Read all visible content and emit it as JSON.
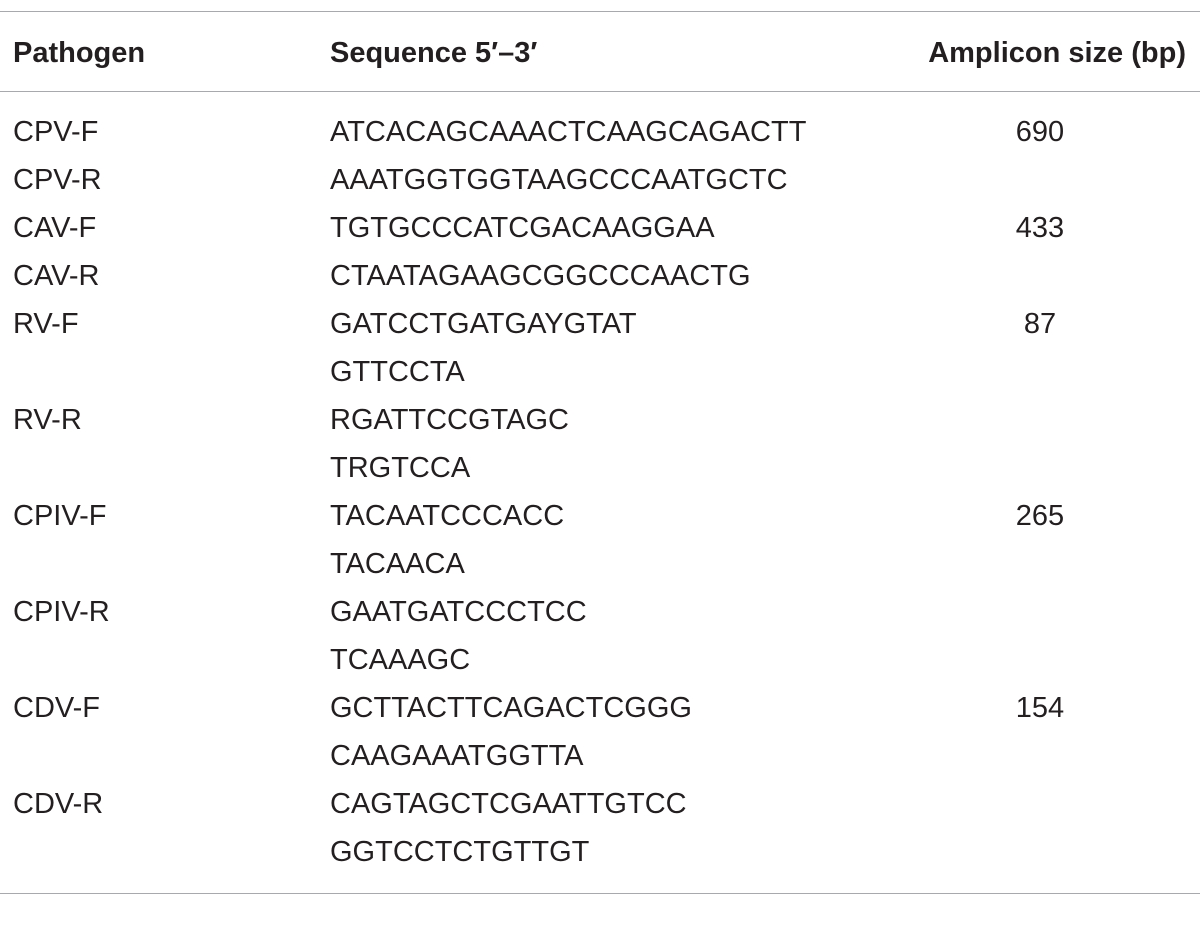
{
  "table": {
    "headers": {
      "pathogen": "Pathogen",
      "sequence": "Sequence 5′–3′",
      "amplicon": "Amplicon size (bp)"
    },
    "rows": [
      {
        "pathogen": "CPV-F",
        "sequence": [
          "ATCACAGCAAACTCAAGCAGACTT"
        ],
        "size": "690"
      },
      {
        "pathogen": "CPV-R",
        "sequence": [
          "AAATGGTGGTAAGCCCAATGCTC"
        ],
        "size": ""
      },
      {
        "pathogen": "CAV-F",
        "sequence": [
          "TGTGCCCATCGACAAGGAA"
        ],
        "size": "433"
      },
      {
        "pathogen": "CAV-R",
        "sequence": [
          "CTAATAGAAGCGGCCCAACTG"
        ],
        "size": ""
      },
      {
        "pathogen": "RV-F",
        "sequence": [
          "GATCCTGATGAYGTAT",
          "GTTCCTA"
        ],
        "size": "87"
      },
      {
        "pathogen": "RV-R",
        "sequence": [
          "RGATTCCGTAGC",
          "TRGTCCA"
        ],
        "size": ""
      },
      {
        "pathogen": "CPIV-F",
        "sequence": [
          "TACAATCCCACC",
          "TACAACA"
        ],
        "size": "265"
      },
      {
        "pathogen": "CPIV-R",
        "sequence": [
          "GAATGATCCCTCC",
          "TCAAAGC"
        ],
        "size": ""
      },
      {
        "pathogen": "CDV-F",
        "sequence": [
          "GCTTACTTCAGACTCGGG",
          "CAAGAAATGGTTA"
        ],
        "size": "154"
      },
      {
        "pathogen": "CDV-R",
        "sequence": [
          "CAGTAGCTCGAATTGTCC",
          "GGTCCTCTGTTGT"
        ],
        "size": ""
      }
    ]
  }
}
